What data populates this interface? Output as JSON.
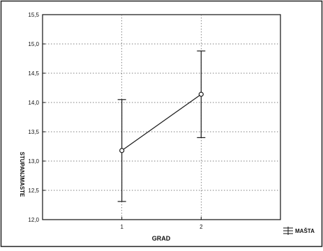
{
  "chart_data": {
    "type": "line",
    "title": "",
    "xlabel": "GRAD",
    "ylabel": "STUPANJMASTE",
    "categories": [
      "1",
      "2"
    ],
    "series": [
      {
        "name": "MAŠTA",
        "values": [
          13.18,
          14.14
        ],
        "error_low": [
          12.31,
          13.4
        ],
        "error_high": [
          14.05,
          14.88
        ]
      }
    ],
    "ylim": [
      12.0,
      15.5
    ],
    "xlim": [
      0,
      3
    ],
    "yticks": [
      "12,0",
      "12,5",
      "13,0",
      "13,5",
      "14,0",
      "14,5",
      "15,0",
      "15,5"
    ],
    "grid": true,
    "legend_position": "bottom-right",
    "colors": {
      "line": "#1a1a1a",
      "grid": "#555555",
      "background": "#ffffff"
    }
  }
}
